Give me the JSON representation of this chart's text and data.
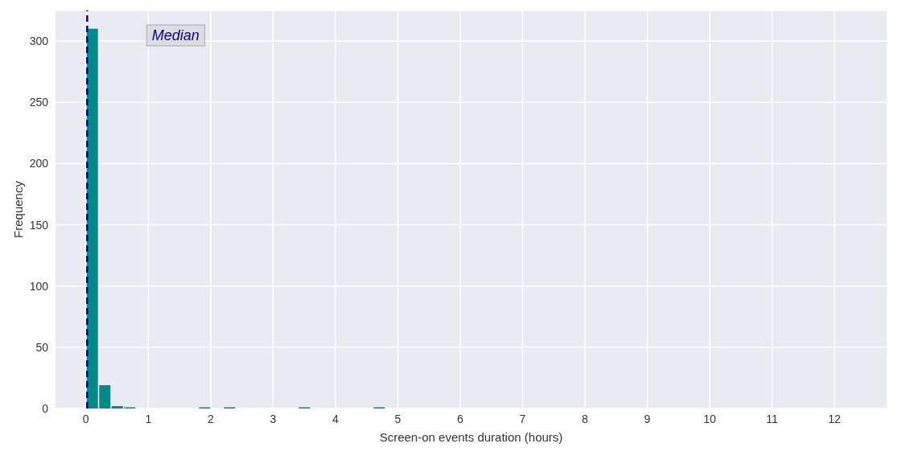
{
  "chart_data": {
    "type": "histogram",
    "xlabel": "Screen-on events duration (hours)",
    "ylabel": "Frequency",
    "bins": [
      0,
      0.2,
      0.4,
      0.6,
      0.8,
      1.0,
      1.2,
      1.4,
      1.6,
      1.8,
      2.0,
      2.2,
      2.4,
      2.6,
      2.8,
      3.0,
      3.2,
      3.4,
      3.6,
      3.8,
      4.0,
      4.2,
      4.4,
      4.6,
      4.8
    ],
    "values": [
      310,
      19,
      2,
      1,
      0,
      0,
      0,
      0,
      0,
      1,
      0,
      1,
      0,
      0,
      0,
      0,
      0,
      1,
      0,
      0,
      0,
      0,
      0,
      1
    ],
    "color": "#008b8b",
    "xlim": [
      -0.5,
      12.85
    ],
    "xticks": [
      0,
      1,
      2,
      3,
      4,
      5,
      6,
      7,
      8,
      9,
      10,
      11,
      12
    ],
    "ylim": [
      0,
      325
    ],
    "yticks": [
      0,
      50,
      100,
      150,
      200,
      250,
      300
    ],
    "grid": true,
    "ref_lines": [
      {
        "axis": "x",
        "value": 0.02,
        "label": "Median",
        "color": "#00008b",
        "line_style": "dashed"
      }
    ]
  }
}
